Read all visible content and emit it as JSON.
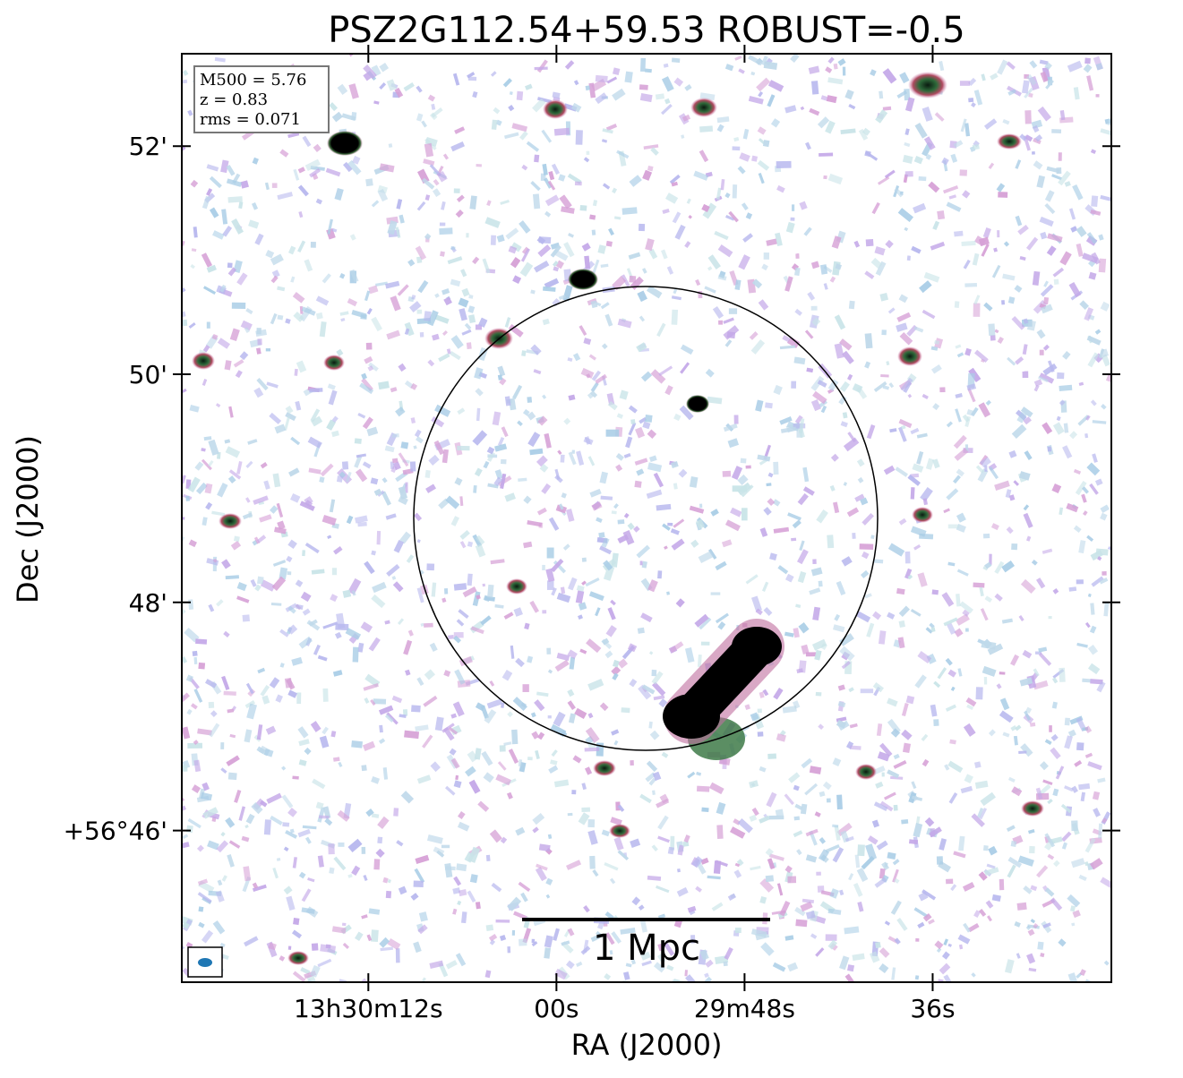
{
  "chart_data": {
    "type": "image",
    "title": "PSZ2G112.54+59.53 ROBUST=-0.5",
    "xlabel": "RA (J2000)",
    "ylabel": "Dec (J2000)",
    "xlim": [
      23.9,
      -35.4
    ],
    "xticks": [
      {
        "value": 12,
        "label": "13h30m12s"
      },
      {
        "value": 0,
        "label": "00s"
      },
      {
        "value": -12,
        "label": "29m48s"
      },
      {
        "value": -24,
        "label": "36s"
      }
    ],
    "ylim": [
      44.67,
      52.81
    ],
    "yticks": [
      {
        "value": 52,
        "label": "52'"
      },
      {
        "value": 50,
        "label": "50'"
      },
      {
        "value": 48,
        "label": "48'"
      },
      {
        "value": 46,
        "label": "+56°46'"
      }
    ],
    "annotations": [
      "M500 = 5.76",
      "z = 0.83",
      "rms = 0.071"
    ],
    "scale_bar_label": "1 Mpc"
  }
}
